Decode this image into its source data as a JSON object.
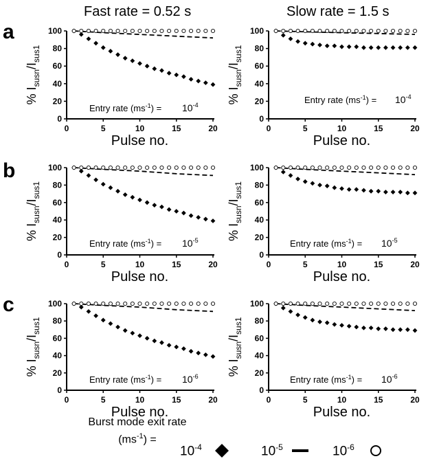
{
  "columns": [
    "Fast rate = 0.52 s",
    "Slow rate = 1.5 s"
  ],
  "rows": [
    "a",
    "b",
    "c"
  ],
  "axes": {
    "xlabel": "Pulse no.",
    "ylabel_prefix": "% I",
    "ylabel_sub1": "susn",
    "ylabel_mid": "/I",
    "ylabel_sub2": "sus1",
    "xticks": [
      0,
      5,
      10,
      15,
      20
    ],
    "yticks": [
      0,
      20,
      40,
      60,
      80,
      100
    ],
    "xlim": [
      0,
      20
    ],
    "ylim": [
      0,
      100
    ]
  },
  "entry_label": "Entry rate (ms",
  "entry_label_sup": "-1",
  "entry_label_end": ") =",
  "legend": {
    "title_line1": "Burst mode exit rate",
    "title_line2": "(ms",
    "title_line2_sup": "-1",
    "title_line2_end": ") =",
    "items": [
      {
        "label": "10",
        "exp": "-4",
        "symbol": "diamond-icon"
      },
      {
        "label": "10",
        "exp": "-5",
        "symbol": "dash-icon"
      },
      {
        "label": "10",
        "exp": "-6",
        "symbol": "circle-icon"
      }
    ]
  },
  "chart_data": [
    {
      "type": "scatter",
      "panel": "a",
      "column": "Fast rate = 0.52 s",
      "entry_rate": "10^-4",
      "xlabel": "Pulse no.",
      "ylabel": "% Isusn/Isus1",
      "xlim": [
        0,
        20
      ],
      "ylim": [
        0,
        100
      ],
      "series": [
        {
          "name": "10^-4",
          "marker": "diamond",
          "x": [
            1,
            2,
            3,
            4,
            5,
            6,
            7,
            8,
            9,
            10,
            11,
            12,
            13,
            14,
            15,
            16,
            17,
            18,
            19,
            20
          ],
          "y": [
            100,
            96,
            91,
            86,
            81,
            77,
            73,
            69,
            66,
            63,
            60,
            57,
            55,
            52,
            50,
            48,
            45,
            43,
            41,
            39
          ]
        },
        {
          "name": "10^-5",
          "marker": "dash",
          "x": [
            1,
            5,
            10,
            15,
            20
          ],
          "y": [
            100,
            98,
            96,
            94,
            92
          ]
        },
        {
          "name": "10^-6",
          "marker": "circle",
          "x": [
            1,
            2,
            3,
            4,
            5,
            6,
            7,
            8,
            9,
            10,
            11,
            12,
            13,
            14,
            15,
            16,
            17,
            18,
            19,
            20
          ],
          "y": [
            100,
            100,
            100,
            100,
            100,
            100,
            100,
            100,
            100,
            100,
            100,
            100,
            100,
            100,
            100,
            100,
            100,
            100,
            100,
            100
          ]
        }
      ]
    },
    {
      "type": "scatter",
      "panel": "a",
      "column": "Slow rate = 1.5 s",
      "entry_rate": "10^-4",
      "xlabel": "Pulse no.",
      "ylabel": "% Isusn/Isus1",
      "xlim": [
        0,
        20
      ],
      "ylim": [
        0,
        100
      ],
      "series": [
        {
          "name": "10^-4",
          "marker": "diamond",
          "x": [
            1,
            2,
            3,
            4,
            5,
            6,
            7,
            8,
            9,
            10,
            11,
            12,
            13,
            14,
            15,
            16,
            17,
            18,
            19,
            20
          ],
          "y": [
            100,
            95,
            91,
            88,
            86,
            85,
            84,
            83,
            83,
            82,
            82,
            82,
            81,
            81,
            81,
            81,
            81,
            81,
            81,
            81
          ]
        },
        {
          "name": "10^-5",
          "marker": "dash",
          "x": [
            1,
            5,
            10,
            15,
            20
          ],
          "y": [
            100,
            99,
            98,
            97,
            96
          ]
        },
        {
          "name": "10^-6",
          "marker": "circle",
          "x": [
            1,
            2,
            3,
            4,
            5,
            6,
            7,
            8,
            9,
            10,
            11,
            12,
            13,
            14,
            15,
            16,
            17,
            18,
            19,
            20
          ],
          "y": [
            100,
            100,
            100,
            100,
            100,
            100,
            100,
            100,
            100,
            100,
            100,
            100,
            100,
            100,
            100,
            100,
            100,
            100,
            100,
            100
          ]
        }
      ]
    },
    {
      "type": "scatter",
      "panel": "b",
      "column": "Fast rate = 0.52 s",
      "entry_rate": "10^-5",
      "xlabel": "Pulse no.",
      "ylabel": "% Isusn/Isus1",
      "xlim": [
        0,
        20
      ],
      "ylim": [
        0,
        100
      ],
      "series": [
        {
          "name": "10^-4",
          "marker": "diamond",
          "x": [
            1,
            2,
            3,
            4,
            5,
            6,
            7,
            8,
            9,
            10,
            11,
            12,
            13,
            14,
            15,
            16,
            17,
            18,
            19,
            20
          ],
          "y": [
            100,
            96,
            91,
            86,
            81,
            77,
            73,
            69,
            66,
            63,
            60,
            57,
            55,
            52,
            50,
            48,
            45,
            43,
            41,
            39
          ]
        },
        {
          "name": "10^-5",
          "marker": "dash",
          "x": [
            1,
            5,
            10,
            15,
            20
          ],
          "y": [
            100,
            98,
            96,
            93,
            91
          ]
        },
        {
          "name": "10^-6",
          "marker": "circle",
          "x": [
            1,
            2,
            3,
            4,
            5,
            6,
            7,
            8,
            9,
            10,
            11,
            12,
            13,
            14,
            15,
            16,
            17,
            18,
            19,
            20
          ],
          "y": [
            100,
            100,
            100,
            100,
            100,
            100,
            100,
            100,
            100,
            100,
            100,
            100,
            100,
            100,
            100,
            100,
            100,
            100,
            100,
            100
          ]
        }
      ]
    },
    {
      "type": "scatter",
      "panel": "b",
      "column": "Slow rate = 1.5 s",
      "entry_rate": "10^-5",
      "xlabel": "Pulse no.",
      "ylabel": "% Isusn/Isus1",
      "xlim": [
        0,
        20
      ],
      "ylim": [
        0,
        100
      ],
      "series": [
        {
          "name": "10^-4",
          "marker": "diamond",
          "x": [
            1,
            2,
            3,
            4,
            5,
            6,
            7,
            8,
            9,
            10,
            11,
            12,
            13,
            14,
            15,
            16,
            17,
            18,
            19,
            20
          ],
          "y": [
            100,
            95,
            91,
            87,
            84,
            82,
            80,
            79,
            77,
            76,
            75,
            75,
            74,
            73,
            73,
            72,
            72,
            72,
            71,
            71
          ]
        },
        {
          "name": "10^-5",
          "marker": "dash",
          "x": [
            1,
            5,
            10,
            15,
            20
          ],
          "y": [
            100,
            98,
            96,
            94,
            92
          ]
        },
        {
          "name": "10^-6",
          "marker": "circle",
          "x": [
            1,
            2,
            3,
            4,
            5,
            6,
            7,
            8,
            9,
            10,
            11,
            12,
            13,
            14,
            15,
            16,
            17,
            18,
            19,
            20
          ],
          "y": [
            100,
            100,
            100,
            100,
            100,
            100,
            100,
            100,
            100,
            100,
            100,
            100,
            100,
            100,
            100,
            100,
            100,
            100,
            100,
            100
          ]
        }
      ]
    },
    {
      "type": "scatter",
      "panel": "c",
      "column": "Fast rate = 0.52 s",
      "entry_rate": "10^-6",
      "xlabel": "Pulse no.",
      "ylabel": "% Isusn/Isus1",
      "xlim": [
        0,
        20
      ],
      "ylim": [
        0,
        100
      ],
      "series": [
        {
          "name": "10^-4",
          "marker": "diamond",
          "x": [
            1,
            2,
            3,
            4,
            5,
            6,
            7,
            8,
            9,
            10,
            11,
            12,
            13,
            14,
            15,
            16,
            17,
            18,
            19,
            20
          ],
          "y": [
            100,
            96,
            91,
            86,
            81,
            77,
            73,
            69,
            66,
            63,
            60,
            57,
            55,
            52,
            50,
            48,
            45,
            43,
            41,
            39
          ]
        },
        {
          "name": "10^-5",
          "marker": "dash",
          "x": [
            1,
            5,
            10,
            15,
            20
          ],
          "y": [
            100,
            98,
            96,
            93,
            91
          ]
        },
        {
          "name": "10^-6",
          "marker": "circle",
          "x": [
            1,
            2,
            3,
            4,
            5,
            6,
            7,
            8,
            9,
            10,
            11,
            12,
            13,
            14,
            15,
            16,
            17,
            18,
            19,
            20
          ],
          "y": [
            100,
            100,
            100,
            100,
            100,
            100,
            100,
            100,
            100,
            100,
            100,
            100,
            100,
            100,
            100,
            100,
            100,
            100,
            100,
            100
          ]
        }
      ]
    },
    {
      "type": "scatter",
      "panel": "c",
      "column": "Slow rate = 1.5 s",
      "entry_rate": "10^-6",
      "xlabel": "Pulse no.",
      "ylabel": "% Isusn/Isus1",
      "xlim": [
        0,
        20
      ],
      "ylim": [
        0,
        100
      ],
      "series": [
        {
          "name": "10^-4",
          "marker": "diamond",
          "x": [
            1,
            2,
            3,
            4,
            5,
            6,
            7,
            8,
            9,
            10,
            11,
            12,
            13,
            14,
            15,
            16,
            17,
            18,
            19,
            20
          ],
          "y": [
            100,
            95,
            91,
            87,
            84,
            81,
            79,
            78,
            76,
            75,
            74,
            73,
            72,
            72,
            71,
            71,
            70,
            70,
            70,
            69
          ]
        },
        {
          "name": "10^-5",
          "marker": "dash",
          "x": [
            1,
            5,
            10,
            15,
            20
          ],
          "y": [
            100,
            98,
            96,
            94,
            92
          ]
        },
        {
          "name": "10^-6",
          "marker": "circle",
          "x": [
            1,
            2,
            3,
            4,
            5,
            6,
            7,
            8,
            9,
            10,
            11,
            12,
            13,
            14,
            15,
            16,
            17,
            18,
            19,
            20
          ],
          "y": [
            100,
            100,
            100,
            100,
            100,
            100,
            100,
            100,
            100,
            100,
            100,
            100,
            100,
            100,
            100,
            100,
            100,
            100,
            100,
            100
          ]
        }
      ]
    }
  ]
}
